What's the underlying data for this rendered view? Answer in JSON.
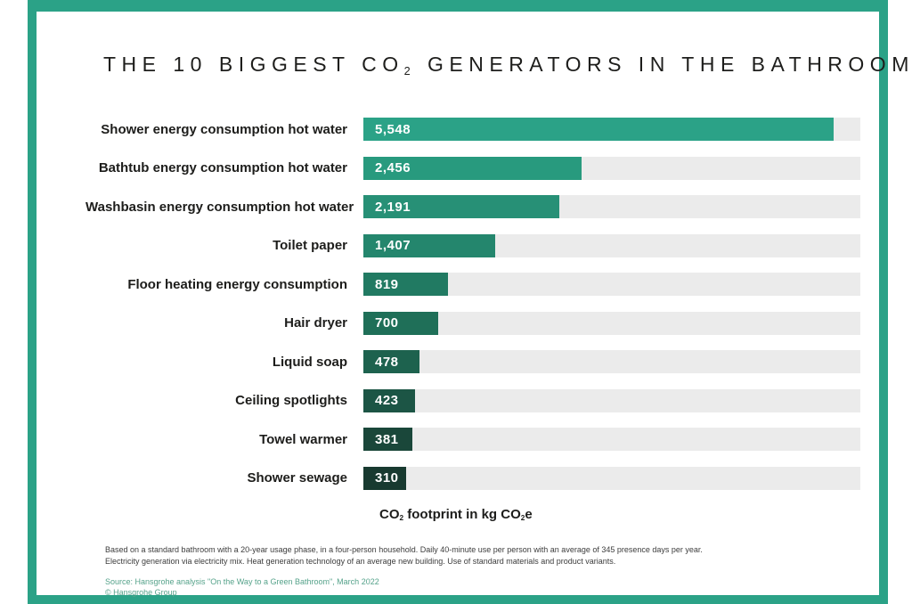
{
  "frame": {
    "accent_color": "#2BA287"
  },
  "title": {
    "p1": "THE 10 BIGGEST CO",
    "sub": "2",
    "p2": " GENERATORS IN THE BATHROOM"
  },
  "chart_data": {
    "type": "bar",
    "orientation": "horizontal",
    "title": "THE 10 BIGGEST CO2 GENERATORS IN THE BATHROOM",
    "xlabel": "CO2 footprint in kg CO2e",
    "xlim": [
      0,
      5880
    ],
    "grid": false,
    "legend": false,
    "categories": [
      "Shower energy consumption hot water",
      "Bathtub energy consumption hot water",
      "Washbasin energy consumption hot water",
      "Toilet paper",
      "Floor heating energy consumption",
      "Hair dryer",
      "Liquid soap",
      "Ceiling spotlights",
      "Towel warmer",
      "Shower sewage"
    ],
    "values": [
      5548,
      2456,
      2191,
      1407,
      819,
      700,
      478,
      423,
      381,
      310
    ],
    "value_labels": [
      "5,548",
      "2,456",
      "2,191",
      "1,407",
      "819",
      "700",
      "478",
      "423",
      "381",
      "310"
    ],
    "bar_colors": [
      "#2BA287",
      "#289A7E",
      "#279076",
      "#24866D",
      "#217A62",
      "#1F6F58",
      "#1D624E",
      "#1C5545",
      "#1A473A",
      "#183A30"
    ],
    "track_color": "#EBEBEB"
  },
  "axis_label": {
    "p1": "CO",
    "sub1": "2",
    "p2": " footprint in kg CO",
    "sub2": "2",
    "p3": "e"
  },
  "footnote": {
    "line1": "Based on a standard bathroom with a 20-year usage phase, in a four-person household. Daily 40-minute use per person with an average of 345 presence days per year.",
    "line2": "Electricity generation via electricity mix. Heat generation technology of an average new building. Use of standard materials and product variants."
  },
  "source": {
    "line1": "Source: Hansgrohe analysis \"On the Way to a Green Bathroom\", March 2022",
    "line2": "© Hansgrohe Group"
  }
}
